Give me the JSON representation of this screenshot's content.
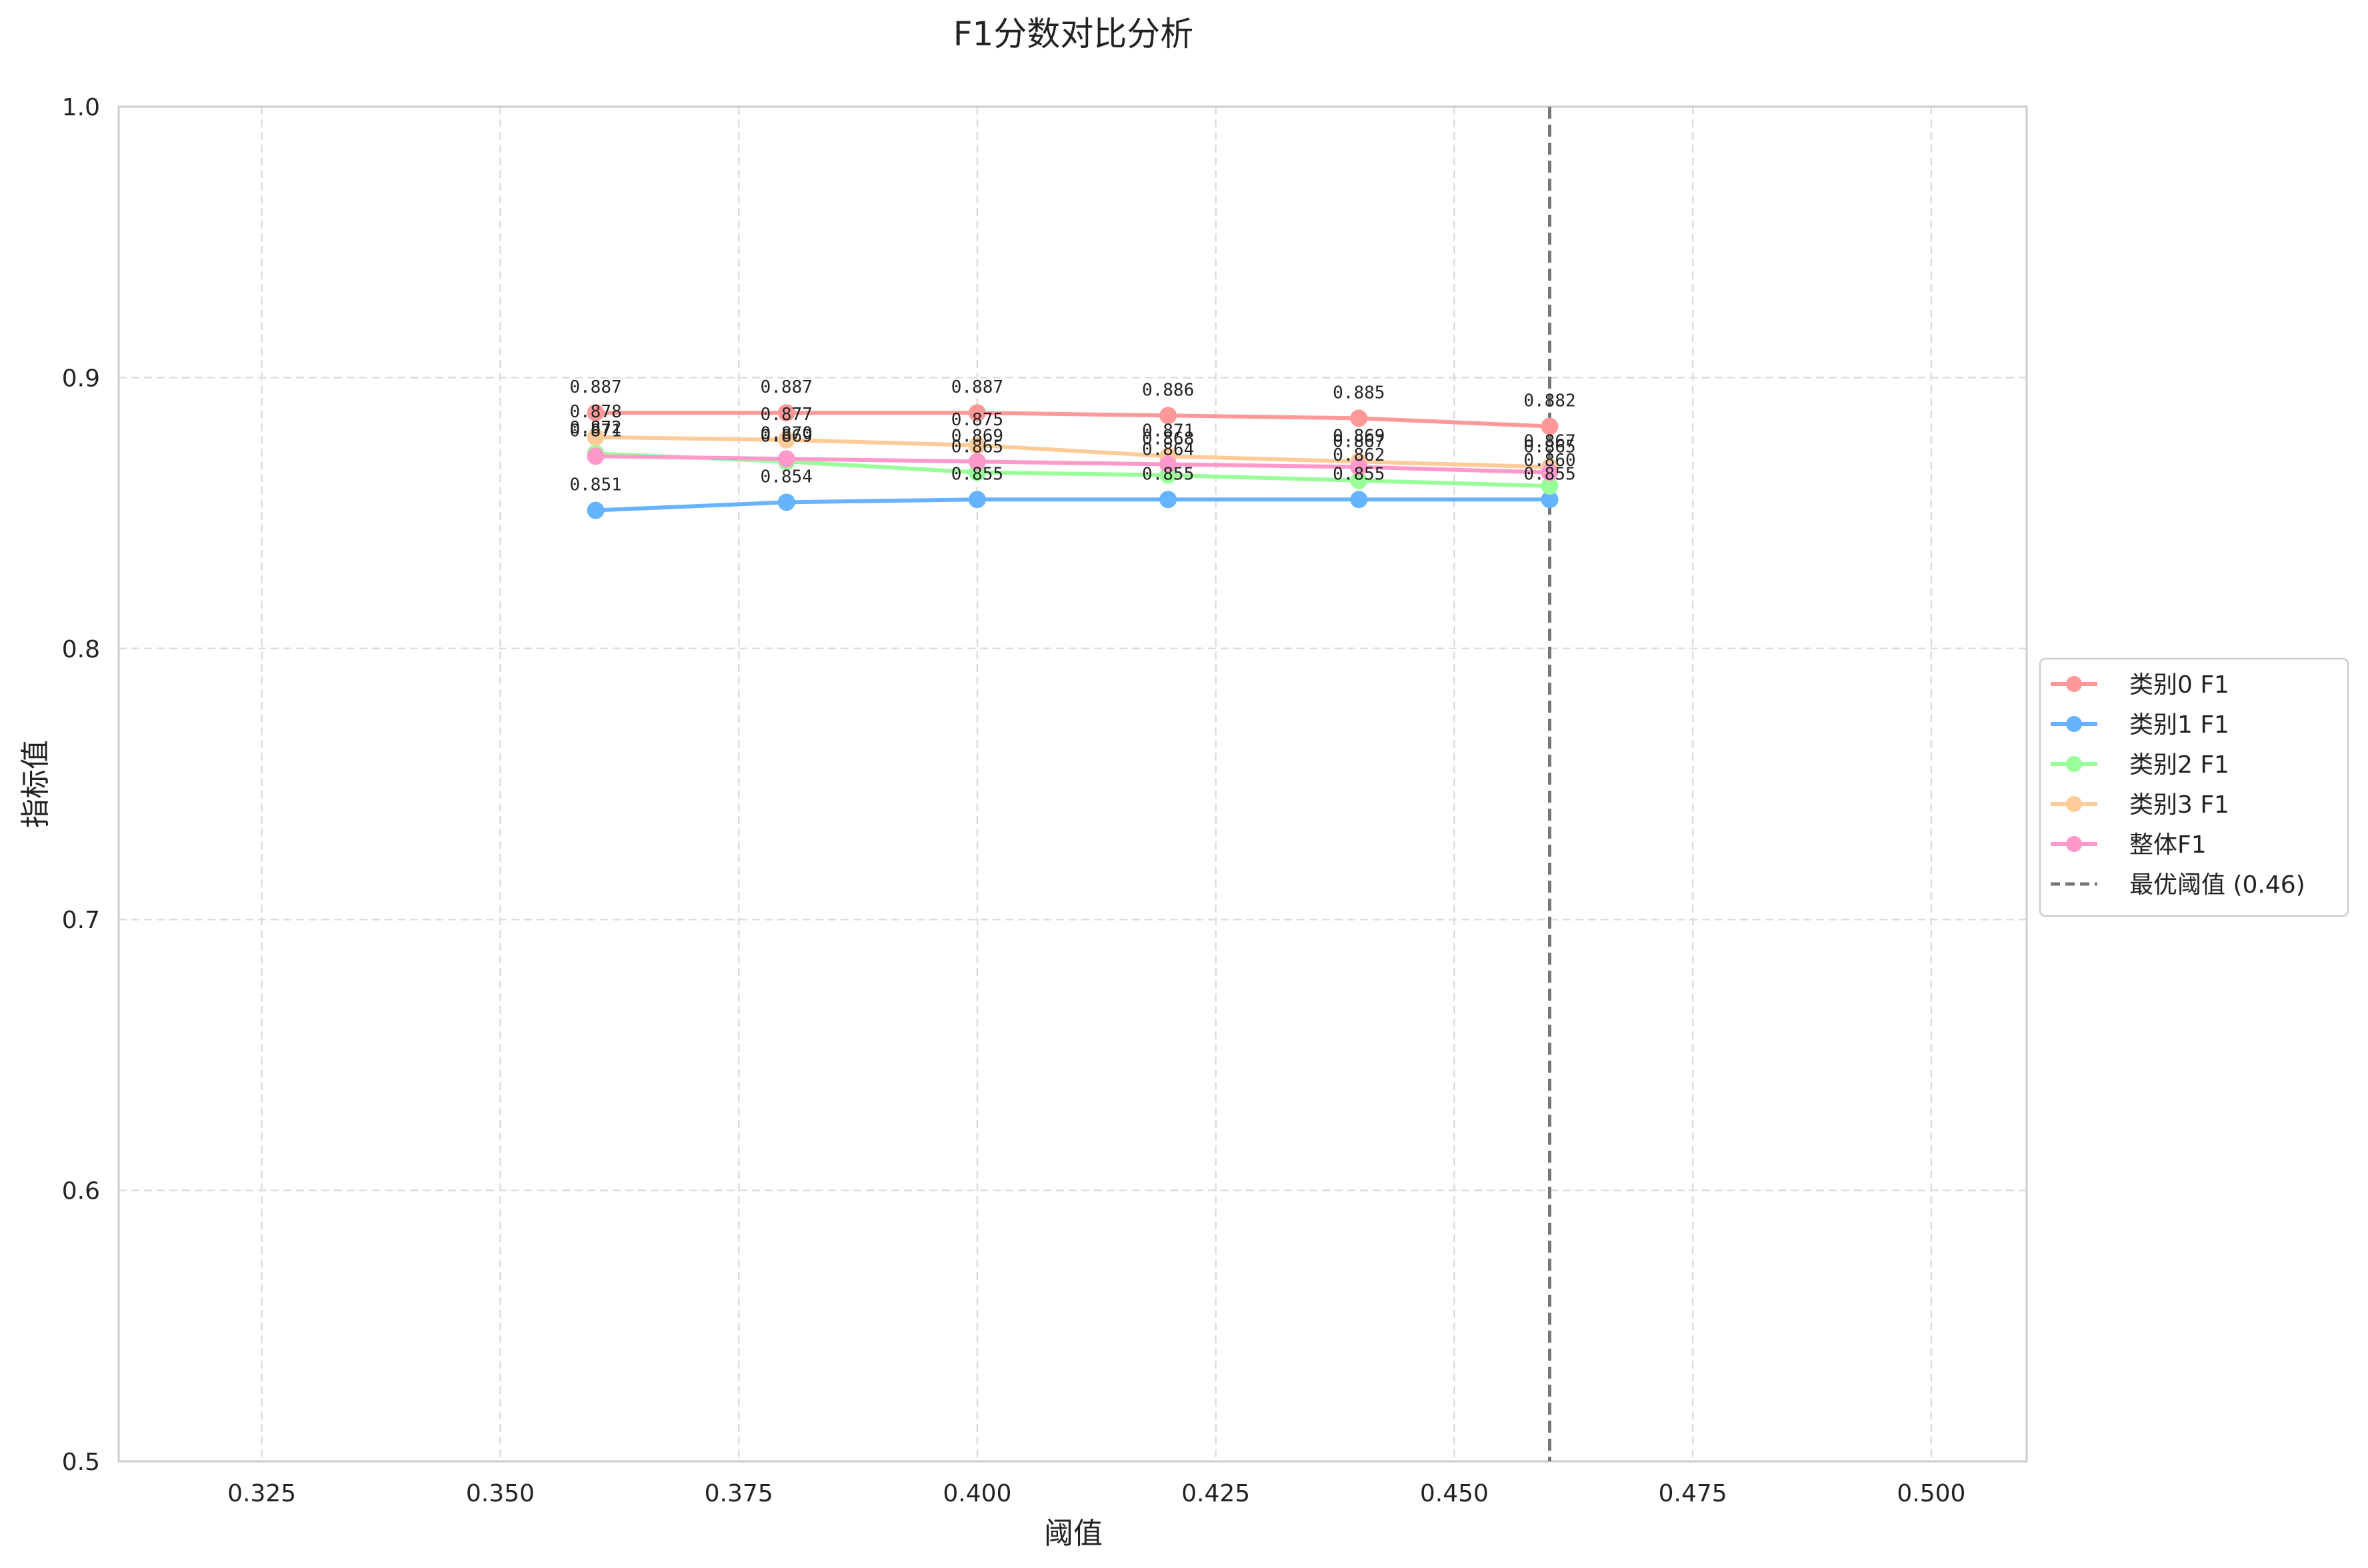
{
  "chart_data": {
    "type": "line",
    "title": "F1分数对比分析",
    "xlabel": "阈值",
    "ylabel": "指标值",
    "x": [
      0.36,
      0.38,
      0.4,
      0.42,
      0.44,
      0.46
    ],
    "xlim": [
      0.31,
      0.51
    ],
    "ylim": [
      0.5,
      1.0
    ],
    "xticks": [
      "0.325",
      "0.350",
      "0.375",
      "0.400",
      "0.425",
      "0.450",
      "0.475",
      "0.500"
    ],
    "xtick_values": [
      0.325,
      0.35,
      0.375,
      0.4,
      0.425,
      0.45,
      0.475,
      0.5
    ],
    "yticks": [
      "0.5",
      "0.6",
      "0.7",
      "0.8",
      "0.9",
      "1.0"
    ],
    "ytick_values": [
      0.5,
      0.6,
      0.7,
      0.8,
      0.9,
      1.0
    ],
    "grid": true,
    "legend_position": "right-center",
    "series": [
      {
        "name": "类别0 F1",
        "color": "#ff9999",
        "values": [
          0.887,
          0.887,
          0.887,
          0.886,
          0.885,
          0.882
        ],
        "labels": [
          "0.887",
          "0.887",
          "0.887",
          "0.886",
          "0.885",
          "0.882"
        ]
      },
      {
        "name": "类别1 F1",
        "color": "#66b3ff",
        "values": [
          0.851,
          0.854,
          0.855,
          0.855,
          0.855,
          0.855
        ],
        "labels": [
          "0.851",
          "0.854",
          "0.855",
          "0.855",
          "0.855",
          "0.855"
        ]
      },
      {
        "name": "类别2 F1",
        "color": "#99ff99",
        "values": [
          0.872,
          0.869,
          0.865,
          0.864,
          0.862,
          0.86
        ],
        "labels": [
          "0.872",
          "0.869",
          "0.865",
          "0.864",
          "0.862",
          "0.860"
        ]
      },
      {
        "name": "类别3 F1",
        "color": "#ffcc99",
        "values": [
          0.878,
          0.877,
          0.875,
          0.871,
          0.869,
          0.867
        ],
        "labels": [
          "0.878",
          "0.877",
          "0.875",
          "0.871",
          "0.869",
          "0.867"
        ]
      },
      {
        "name": "整体F1",
        "color": "#ff99cc",
        "values": [
          0.871,
          0.87,
          0.869,
          0.868,
          0.867,
          0.865
        ],
        "labels": [
          "0.871",
          "0.870",
          "0.869",
          "0.868",
          "0.867",
          "0.865"
        ]
      }
    ],
    "reference_line": {
      "name": "最优阈值 (0.46)",
      "x": 0.46,
      "color": "#777777"
    }
  }
}
